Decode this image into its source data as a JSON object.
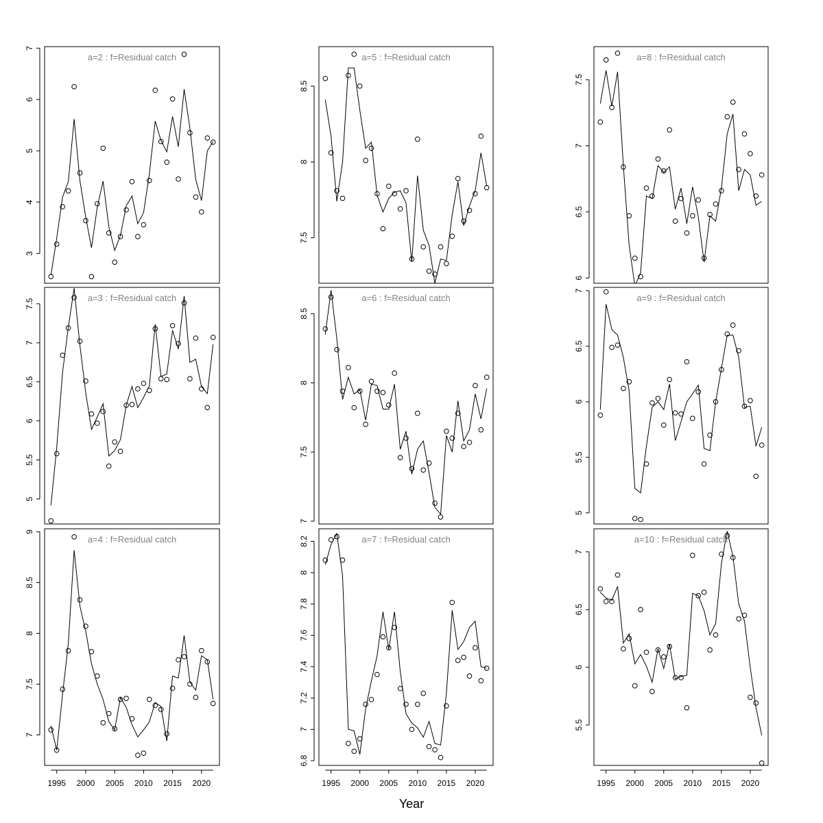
{
  "xlabel": "Year",
  "colors": {
    "title": "#808080",
    "line": "#000000",
    "points": "#000000"
  },
  "chart_data": [
    {
      "type": "line",
      "title": "a=2  :  f=Residual catch",
      "yticks": [
        3,
        4,
        5,
        6,
        7
      ],
      "xticks": [
        1995,
        2000,
        2005,
        2010,
        2015,
        2020
      ],
      "ylim": [
        2.42,
        7.03
      ],
      "xlim": [
        1992.9,
        2023.1
      ],
      "x": [
        1994,
        1995,
        1996,
        1997,
        1998,
        1999,
        2000,
        2001,
        2002,
        2003,
        2004,
        2005,
        2006,
        2007,
        2008,
        2009,
        2010,
        2011,
        2012,
        2013,
        2014,
        2015,
        2016,
        2017,
        2018,
        2019,
        2020,
        2021,
        2022
      ],
      "observed": [
        2.55,
        3.18,
        3.91,
        4.22,
        6.25,
        4.57,
        3.64,
        2.55,
        3.97,
        5.05,
        3.4,
        2.83,
        3.33,
        3.85,
        4.4,
        3.33,
        3.56,
        4.42,
        6.18,
        5.18,
        4.78,
        6.01,
        4.45,
        6.88,
        5.35,
        4.1,
        3.81,
        5.25,
        5.17
      ],
      "fitted": [
        2.58,
        3.3,
        4.1,
        4.4,
        5.62,
        4.42,
        3.71,
        3.11,
        3.9,
        4.41,
        3.52,
        3.06,
        3.35,
        3.93,
        4.12,
        3.58,
        3.8,
        4.55,
        5.58,
        5.2,
        4.98,
        5.67,
        5.08,
        6.2,
        5.44,
        4.44,
        4.03,
        5.0,
        5.18
      ]
    },
    {
      "type": "line",
      "title": "a=3  :  f=Residual catch",
      "yticks": [
        5.0,
        5.5,
        6.0,
        6.5,
        7.0,
        7.5
      ],
      "xticks": [
        1995,
        2000,
        2005,
        2010,
        2015,
        2020
      ],
      "ylim": [
        4.68,
        7.71
      ],
      "xlim": [
        1992.9,
        2023.1
      ],
      "x": [
        1994,
        1995,
        1996,
        1997,
        1998,
        1999,
        2000,
        2001,
        2002,
        2003,
        2004,
        2005,
        2006,
        2007,
        2008,
        2009,
        2010,
        2011,
        2012,
        2013,
        2014,
        2015,
        2016,
        2017,
        2018,
        2019,
        2020,
        2021,
        2022
      ],
      "observed": [
        4.72,
        5.58,
        6.84,
        7.19,
        7.58,
        7.02,
        6.51,
        6.09,
        5.97,
        6.12,
        5.42,
        5.73,
        5.61,
        6.2,
        6.21,
        6.41,
        6.48,
        6.39,
        7.18,
        6.54,
        6.53,
        7.22,
        6.99,
        7.51,
        6.54,
        7.06,
        6.41,
        6.17,
        7.07
      ],
      "fitted": [
        4.92,
        5.66,
        6.62,
        7.2,
        7.7,
        6.97,
        6.36,
        5.89,
        6.05,
        6.22,
        5.55,
        5.62,
        5.76,
        6.2,
        6.44,
        6.17,
        6.3,
        6.45,
        7.24,
        6.57,
        6.6,
        7.16,
        6.92,
        7.6,
        6.75,
        6.79,
        6.44,
        6.35,
        6.98
      ]
    },
    {
      "type": "line",
      "title": "a=4  :  f=Residual catch",
      "yticks": [
        7.0,
        7.5,
        8.0,
        8.5,
        9.0
      ],
      "xticks": [
        1995,
        2000,
        2005,
        2010,
        2015,
        2020
      ],
      "ylim": [
        6.7,
        9.03
      ],
      "xlim": [
        1992.9,
        2023.1
      ],
      "x": [
        1994,
        1995,
        1996,
        1997,
        1998,
        1999,
        2000,
        2001,
        2002,
        2003,
        2004,
        2005,
        2006,
        2007,
        2008,
        2009,
        2010,
        2011,
        2012,
        2013,
        2014,
        2015,
        2016,
        2017,
        2018,
        2019,
        2020,
        2021,
        2022
      ],
      "observed": [
        7.05,
        6.85,
        7.45,
        7.83,
        8.95,
        8.33,
        8.07,
        7.82,
        7.58,
        7.12,
        7.21,
        7.06,
        7.35,
        7.36,
        7.16,
        6.8,
        6.82,
        7.35,
        7.29,
        7.25,
        7.01,
        7.46,
        7.74,
        7.77,
        7.5,
        7.37,
        7.83,
        7.72,
        7.31
      ],
      "fitted": [
        7.09,
        6.85,
        7.4,
        7.9,
        8.82,
        8.27,
        8.02,
        7.7,
        7.5,
        7.35,
        7.13,
        7.05,
        7.37,
        7.27,
        7.1,
        6.98,
        7.05,
        7.13,
        7.32,
        7.28,
        6.94,
        7.58,
        7.56,
        7.98,
        7.52,
        7.44,
        7.78,
        7.74,
        7.35
      ]
    },
    {
      "type": "line",
      "title": "a=5  :  f=Residual catch",
      "yticks": [
        7.5,
        8.0,
        8.5
      ],
      "xticks": [
        1995,
        2000,
        2005,
        2010,
        2015,
        2020
      ],
      "ylim": [
        7.2,
        8.76
      ],
      "xlim": [
        1992.9,
        2023.1
      ],
      "x": [
        1994,
        1995,
        1996,
        1997,
        1998,
        1999,
        2000,
        2001,
        2002,
        2003,
        2004,
        2005,
        2006,
        2007,
        2008,
        2009,
        2010,
        2011,
        2012,
        2013,
        2014,
        2015,
        2016,
        2017,
        2018,
        2019,
        2020,
        2021,
        2022
      ],
      "observed": [
        8.55,
        8.06,
        7.81,
        7.76,
        8.57,
        8.71,
        8.5,
        8.01,
        8.09,
        7.79,
        7.56,
        7.84,
        7.79,
        7.69,
        7.81,
        7.36,
        8.15,
        7.44,
        7.28,
        7.26,
        7.44,
        7.33,
        7.51,
        7.89,
        7.61,
        7.68,
        7.79,
        8.17,
        7.83
      ],
      "fitted": [
        8.41,
        8.17,
        7.74,
        8.0,
        8.62,
        8.62,
        8.34,
        8.09,
        8.13,
        7.78,
        7.67,
        7.76,
        7.8,
        7.81,
        7.73,
        7.34,
        7.91,
        7.55,
        7.45,
        7.2,
        7.36,
        7.35,
        7.65,
        7.87,
        7.58,
        7.71,
        7.81,
        8.06,
        7.84
      ]
    },
    {
      "type": "line",
      "title": "a=6  :  f=Residual catch",
      "yticks": [
        7.0,
        7.5,
        8.0,
        8.5
      ],
      "xticks": [
        1995,
        2000,
        2005,
        2010,
        2015,
        2020
      ],
      "ylim": [
        6.98,
        8.69
      ],
      "xlim": [
        1992.9,
        2023.1
      ],
      "x": [
        1994,
        1995,
        1996,
        1997,
        1998,
        1999,
        2000,
        2001,
        2002,
        2003,
        2004,
        2005,
        2006,
        2007,
        2008,
        2009,
        2010,
        2011,
        2012,
        2013,
        2014,
        2015,
        2016,
        2017,
        2018,
        2019,
        2020,
        2021,
        2022
      ],
      "observed": [
        8.39,
        8.62,
        8.24,
        7.94,
        8.11,
        7.82,
        7.94,
        7.7,
        8.01,
        7.94,
        7.93,
        7.84,
        8.07,
        7.46,
        7.6,
        7.38,
        7.78,
        7.37,
        7.42,
        7.13,
        7.03,
        7.65,
        7.6,
        7.78,
        7.54,
        7.57,
        7.98,
        7.66,
        8.04
      ],
      "fitted": [
        8.35,
        8.67,
        8.32,
        7.88,
        8.04,
        7.92,
        7.95,
        7.73,
        7.99,
        7.98,
        7.81,
        7.81,
        7.99,
        7.52,
        7.65,
        7.34,
        7.52,
        7.58,
        7.35,
        7.1,
        7.05,
        7.62,
        7.5,
        7.87,
        7.58,
        7.66,
        7.92,
        7.74,
        7.96
      ]
    },
    {
      "type": "line",
      "title": "a=7  :  f=Residual catch",
      "yticks": [
        6.8,
        7.0,
        7.2,
        7.4,
        7.6,
        7.8,
        8.0,
        8.2
      ],
      "xticks": [
        1995,
        2000,
        2005,
        2010,
        2015,
        2020
      ],
      "ylim": [
        6.77,
        8.28
      ],
      "xlim": [
        1992.9,
        2023.1
      ],
      "x": [
        1994,
        1995,
        1996,
        1997,
        1998,
        1999,
        2000,
        2001,
        2002,
        2003,
        2004,
        2005,
        2006,
        2007,
        2008,
        2009,
        2010,
        2011,
        2012,
        2013,
        2014,
        2015,
        2016,
        2017,
        2018,
        2019,
        2020,
        2021,
        2022
      ],
      "observed": [
        8.08,
        8.21,
        8.23,
        8.08,
        6.91,
        6.86,
        6.94,
        7.16,
        7.19,
        7.35,
        7.59,
        7.52,
        7.65,
        7.26,
        7.16,
        7.0,
        7.16,
        7.23,
        6.89,
        6.87,
        6.82,
        7.15,
        7.81,
        7.44,
        7.46,
        7.34,
        7.52,
        7.31,
        7.39
      ],
      "fitted": [
        8.05,
        8.18,
        8.25,
        7.98,
        7.0,
        6.99,
        6.84,
        7.13,
        7.31,
        7.47,
        7.75,
        7.51,
        7.75,
        7.37,
        7.1,
        7.04,
        7.01,
        6.95,
        7.05,
        6.91,
        6.9,
        7.23,
        7.76,
        7.51,
        7.56,
        7.65,
        7.69,
        7.4,
        7.39
      ]
    },
    {
      "type": "line",
      "title": "a=8  :  f=Residual catch",
      "yticks": [
        6.0,
        6.5,
        7.0,
        7.5
      ],
      "xticks": [
        1995,
        2000,
        2005,
        2010,
        2015,
        2020
      ],
      "ylim": [
        5.96,
        7.75
      ],
      "xlim": [
        1992.9,
        2023.1
      ],
      "x": [
        1994,
        1995,
        1996,
        1997,
        1998,
        1999,
        2000,
        2001,
        2002,
        2003,
        2004,
        2005,
        2006,
        2007,
        2008,
        2009,
        2010,
        2011,
        2012,
        2013,
        2014,
        2015,
        2016,
        2017,
        2018,
        2019,
        2020,
        2021,
        2022
      ],
      "observed": [
        7.18,
        7.65,
        7.29,
        7.7,
        6.84,
        6.47,
        6.15,
        6.01,
        6.68,
        6.62,
        6.9,
        6.81,
        7.12,
        6.43,
        6.6,
        6.34,
        6.47,
        6.59,
        6.15,
        6.48,
        6.56,
        6.66,
        7.22,
        7.33,
        6.82,
        7.09,
        6.94,
        6.62,
        6.78
      ],
      "fitted": [
        7.32,
        7.57,
        7.3,
        7.56,
        6.85,
        6.25,
        5.94,
        6.04,
        6.62,
        6.6,
        6.85,
        6.8,
        6.84,
        6.52,
        6.68,
        6.41,
        6.69,
        6.46,
        6.12,
        6.47,
        6.43,
        6.68,
        7.09,
        7.24,
        6.66,
        6.82,
        6.78,
        6.55,
        6.58
      ]
    },
    {
      "type": "line",
      "title": "a=9  :  f=Residual catch",
      "yticks": [
        5.0,
        5.5,
        6.0,
        6.5,
        7.0
      ],
      "xticks": [
        1995,
        2000,
        2005,
        2010,
        2015,
        2020
      ],
      "ylim": [
        4.9,
        7.03
      ],
      "xlim": [
        1992.9,
        2023.1
      ],
      "x": [
        1994,
        1995,
        1996,
        1997,
        1998,
        1999,
        2000,
        2001,
        2002,
        2003,
        2004,
        2005,
        2006,
        2007,
        2008,
        2009,
        2010,
        2011,
        2012,
        2013,
        2014,
        2015,
        2016,
        2017,
        2018,
        2019,
        2020,
        2021,
        2022
      ],
      "observed": [
        5.88,
        6.99,
        6.49,
        6.51,
        6.12,
        6.18,
        4.95,
        4.94,
        5.44,
        5.99,
        6.03,
        5.79,
        6.2,
        5.9,
        5.89,
        6.36,
        5.85,
        6.09,
        5.44,
        5.7,
        6.0,
        6.29,
        6.61,
        6.69,
        6.46,
        5.96,
        6.01,
        5.33,
        5.61
      ],
      "fitted": [
        5.93,
        6.88,
        6.65,
        6.6,
        6.4,
        6.1,
        5.22,
        5.18,
        5.6,
        5.95,
        6.0,
        5.93,
        6.16,
        5.65,
        5.82,
        6.0,
        6.07,
        6.15,
        5.58,
        5.56,
        6.0,
        6.3,
        6.6,
        6.6,
        6.4,
        5.95,
        5.96,
        5.6,
        5.77
      ]
    },
    {
      "type": "line",
      "title": "a=10  :  f=Residual catch",
      "yticks": [
        5.5,
        6.0,
        6.5,
        7.0
      ],
      "xticks": [
        1995,
        2000,
        2005,
        2010,
        2015,
        2020
      ],
      "ylim": [
        5.15,
        7.2
      ],
      "xlim": [
        1992.9,
        2023.1
      ],
      "x": [
        1994,
        1995,
        1996,
        1997,
        1998,
        1999,
        2000,
        2001,
        2002,
        2003,
        2004,
        2005,
        2006,
        2007,
        2008,
        2009,
        2010,
        2011,
        2012,
        2013,
        2014,
        2015,
        2016,
        2017,
        2018,
        2019,
        2020,
        2021,
        2022
      ],
      "observed": [
        6.68,
        6.57,
        6.57,
        6.8,
        6.16,
        6.25,
        5.84,
        6.5,
        6.13,
        5.79,
        6.15,
        6.09,
        6.18,
        5.91,
        5.91,
        5.65,
        6.97,
        6.62,
        6.65,
        6.15,
        6.28,
        6.98,
        7.14,
        6.95,
        6.42,
        6.45,
        5.74,
        5.69,
        5.17
      ],
      "fitted": [
        6.65,
        6.6,
        6.58,
        6.7,
        6.21,
        6.29,
        6.03,
        6.11,
        6.01,
        5.87,
        6.16,
        5.99,
        6.2,
        5.9,
        5.92,
        5.93,
        6.64,
        6.62,
        6.49,
        6.28,
        6.38,
        6.9,
        7.18,
        6.96,
        6.55,
        6.4,
        6.0,
        5.65,
        5.41
      ]
    }
  ]
}
